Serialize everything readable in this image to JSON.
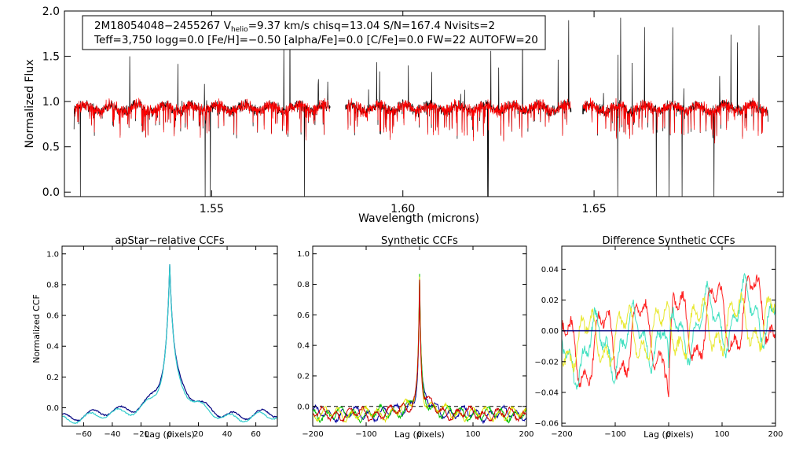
{
  "chart_data": [
    {
      "type": "line",
      "id": "spectrum",
      "title_lines": {
        "line1": {
          "star": "2M18054048−2455267",
          "v_label": "V",
          "v_sub": "helio",
          "v_value": "=9.37 km/s",
          "rest": "chisq=13.04  S/N=167.4  Nvisits=2"
        },
        "line2": "Teff=3,750 logg=0.0 [Fe/H]=−0.50 [alpha/Fe]=0.0 [C/Fe]=0.0 FW=22 AUTOFW=20"
      },
      "xlabel": "Wavelength (microns)",
      "ylabel": "Normalized Flux",
      "xlim": [
        1.5115,
        1.6995
      ],
      "ylim": [
        -0.05,
        2.0
      ],
      "xticks": [
        {
          "v": 1.55,
          "label": "1.55"
        },
        {
          "v": 1.6,
          "label": "1.60"
        },
        {
          "v": 1.65,
          "label": "1.65"
        }
      ],
      "yticks": [
        {
          "v": 0.0,
          "label": "0.0"
        },
        {
          "v": 0.5,
          "label": "0.5"
        },
        {
          "v": 1.0,
          "label": "1.0"
        },
        {
          "v": 1.5,
          "label": "1.5"
        },
        {
          "v": 2.0,
          "label": "2.0"
        }
      ],
      "chips": [
        [
          1.514,
          1.581
        ],
        [
          1.585,
          1.644
        ],
        [
          1.647,
          1.6955
        ]
      ],
      "series": [
        {
          "name": "observed",
          "color": "#000000"
        },
        {
          "name": "synthetic",
          "color": "#ff0000"
        }
      ]
    },
    {
      "type": "line",
      "id": "ccf-apstar",
      "title": "apStar−relative CCFs",
      "xlabel": "Lag (pixels)",
      "ylabel": "Normalized CCF",
      "xlim": [
        -75,
        75
      ],
      "ylim": [
        -0.12,
        1.05
      ],
      "xticks": [
        {
          "v": -60,
          "label": "−60"
        },
        {
          "v": -40,
          "label": "−40"
        },
        {
          "v": -20,
          "label": "−20"
        },
        {
          "v": 0,
          "label": "0"
        },
        {
          "v": 20,
          "label": "20"
        },
        {
          "v": 40,
          "label": "40"
        },
        {
          "v": 60,
          "label": "60"
        }
      ],
      "yticks": [
        {
          "v": 0.0,
          "label": "0.0"
        },
        {
          "v": 0.2,
          "label": "0.2"
        },
        {
          "v": 0.4,
          "label": "0.4"
        },
        {
          "v": 0.6,
          "label": "0.6"
        },
        {
          "v": 0.8,
          "label": "0.8"
        },
        {
          "v": 1.0,
          "label": "1.0"
        }
      ],
      "series": [
        {
          "name": "visit-1",
          "color": "#000080"
        },
        {
          "name": "visit-2",
          "color": "#33cccc"
        }
      ]
    },
    {
      "type": "line",
      "id": "ccf-synthetic",
      "title": "Synthetic CCFs",
      "xlabel": "Lag (pixels)",
      "ylabel": "",
      "xlim": [
        -200,
        200
      ],
      "ylim": [
        -0.13,
        1.05
      ],
      "reference_line": 0.0,
      "xticks": [
        {
          "v": -200,
          "label": "−200"
        },
        {
          "v": -100,
          "label": "−100"
        },
        {
          "v": 0,
          "label": "0"
        },
        {
          "v": 100,
          "label": "100"
        },
        {
          "v": 200,
          "label": "200"
        }
      ],
      "yticks": [
        {
          "v": 0.0,
          "label": "0.0"
        },
        {
          "v": 0.2,
          "label": "0.2"
        },
        {
          "v": 0.4,
          "label": "0.4"
        },
        {
          "v": 0.6,
          "label": "0.6"
        },
        {
          "v": 0.8,
          "label": "0.8"
        },
        {
          "v": 1.0,
          "label": "1.0"
        }
      ],
      "series": [
        {
          "name": "ccf-1",
          "color": "#0000a0"
        },
        {
          "name": "ccf-2",
          "color": "#00c000"
        },
        {
          "name": "ccf-3",
          "color": "#e0e000"
        },
        {
          "name": "ccf-4",
          "color": "#cc0000"
        }
      ]
    },
    {
      "type": "line",
      "id": "ccf-difference",
      "title": "Difference Synthetic CCFs",
      "xlabel": "Lag (pixels)",
      "ylabel": "",
      "xlim": [
        -200,
        200
      ],
      "ylim": [
        -0.062,
        0.055
      ],
      "reference_line": 0.0,
      "xticks": [
        {
          "v": -200,
          "label": "−200"
        },
        {
          "v": -100,
          "label": "−100"
        },
        {
          "v": 0,
          "label": "0"
        },
        {
          "v": 100,
          "label": "100"
        },
        {
          "v": 200,
          "label": "200"
        }
      ],
      "yticks": [
        {
          "v": -0.06,
          "label": "−0.06"
        },
        {
          "v": -0.04,
          "label": "−0.04"
        },
        {
          "v": -0.02,
          "label": "−0.02"
        },
        {
          "v": 0.0,
          "label": "0.00"
        },
        {
          "v": 0.02,
          "label": "0.02"
        },
        {
          "v": 0.04,
          "label": "0.04"
        }
      ],
      "series": [
        {
          "name": "diff-1",
          "color": "#ff2020"
        },
        {
          "name": "diff-2",
          "color": "#40e0c0"
        },
        {
          "name": "diff-3",
          "color": "#e8e830"
        },
        {
          "name": "zero",
          "color": "#000080"
        }
      ]
    }
  ]
}
